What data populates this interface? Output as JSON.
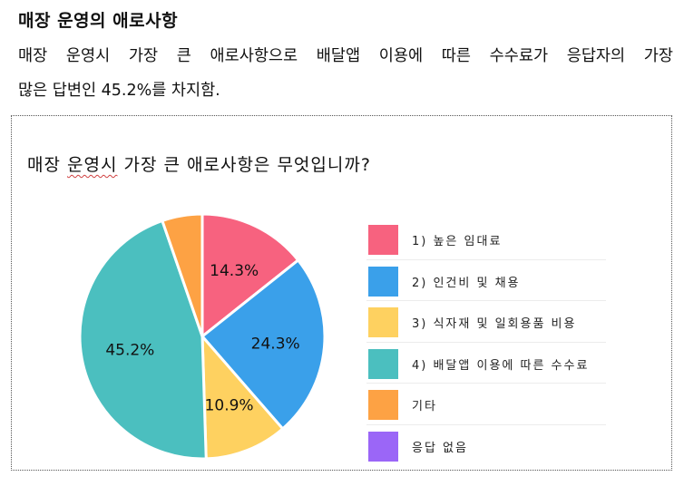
{
  "heading": "매장 운영의 애로사항",
  "paragraph": {
    "line1": [
      "매장",
      "운영시",
      "가장",
      "큰",
      "애로사항으로",
      "배달앱",
      "이용에",
      "따른",
      "수수료가",
      "응답자의",
      "가장"
    ],
    "line2": "많은 답변인 45.2%를 차지함."
  },
  "chart_data": {
    "type": "pie",
    "title": "매장 운영시 가장 큰 애로사항은 무엇입니까?",
    "title_parts": {
      "before": "매장 ",
      "underlined": "운영시",
      "after": " 가장 큰 애로사항은 무엇입니까?"
    },
    "legend_position": "right",
    "slices": [
      {
        "label": "1) 높은 임대료",
        "value": 14.3,
        "display": "14.3%",
        "color": "#f7627f"
      },
      {
        "label": "2) 인건비 및 채용",
        "value": 24.3,
        "display": "24.3%",
        "color": "#3aa0ea"
      },
      {
        "label": "3) 식자재 및 일회용품 비용",
        "value": 10.9,
        "display": "10.9%",
        "color": "#fed160"
      },
      {
        "label": "4) 배달앱 이용에 따른 수수료",
        "value": 45.2,
        "display": "45.2%",
        "color": "#4bbfbf"
      },
      {
        "label": "기타",
        "value": 5.3,
        "display": "",
        "color": "#fda244"
      },
      {
        "label": "응답 없음",
        "value": 0,
        "display": "",
        "color": "#9b66f7"
      }
    ]
  }
}
